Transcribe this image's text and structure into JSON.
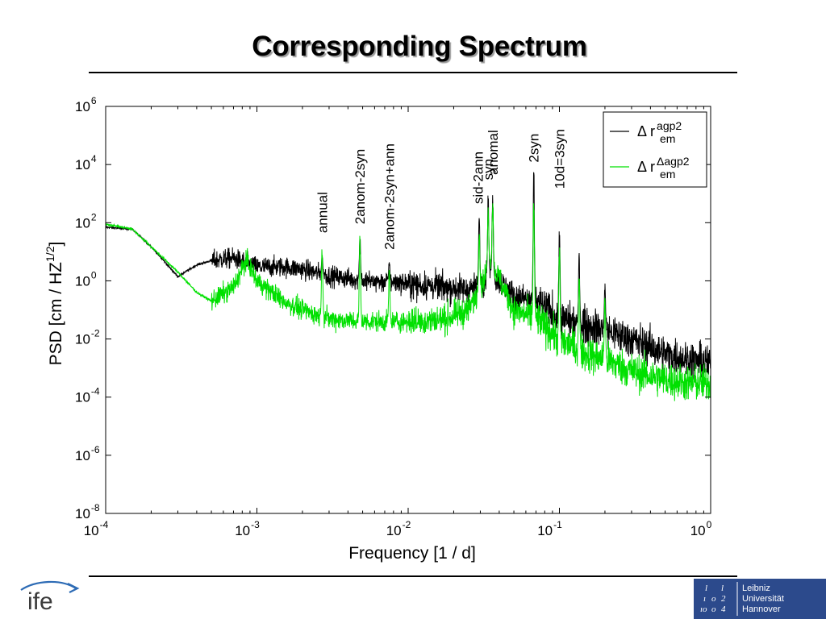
{
  "slide": {
    "title": "Corresponding Spectrum"
  },
  "logos": {
    "left_text": "ife",
    "right_lines": [
      "Leibniz",
      "Universität",
      "Hannover"
    ],
    "right_mark": [
      "l",
      "l",
      "ı",
      "o",
      "2",
      "ıo",
      "o",
      "4"
    ]
  },
  "chart_data": {
    "type": "line",
    "title": "",
    "xlabel": "Frequency [1 / d]",
    "ylabel": "PSD [cm / HZ^1/2]",
    "xscale": "log",
    "yscale": "log",
    "xlim": [
      0.0001,
      1
    ],
    "ylim": [
      1e-08,
      1000000.0
    ],
    "x_ticks": [
      0.0001,
      0.001,
      0.01,
      0.1,
      1
    ],
    "x_tick_labels": [
      {
        "base": "10",
        "exp": "-4"
      },
      {
        "base": "10",
        "exp": "-3"
      },
      {
        "base": "10",
        "exp": "-2"
      },
      {
        "base": "10",
        "exp": "-1"
      },
      {
        "base": "10",
        "exp": "0"
      }
    ],
    "y_ticks": [
      1e-08,
      1e-06,
      0.0001,
      0.01,
      1,
      100.0,
      10000.0,
      1000000.0
    ],
    "y_tick_labels": [
      {
        "base": "10",
        "exp": "-8"
      },
      {
        "base": "10",
        "exp": "-6"
      },
      {
        "base": "10",
        "exp": "-4"
      },
      {
        "base": "10",
        "exp": "-2"
      },
      {
        "base": "10",
        "exp": "0"
      },
      {
        "base": "10",
        "exp": "2"
      },
      {
        "base": "10",
        "exp": "4"
      },
      {
        "base": "10",
        "exp": "6"
      }
    ],
    "grid": false,
    "legend_position": "top-right",
    "legend": [
      {
        "prefix": "Δ r",
        "sup": "agp2",
        "sub": "em",
        "color": "#000000"
      },
      {
        "prefix": "Δ r",
        "sup": "Δagp2",
        "sub": "em",
        "color": "#00e000"
      }
    ],
    "annotations": [
      {
        "text": "annual",
        "x": 0.0027,
        "y": 30
      },
      {
        "text": "2anom-2syn",
        "x": 0.0048,
        "y": 60
      },
      {
        "text": "2anom-2syn+ann",
        "x": 0.0075,
        "y": 8
      },
      {
        "text": "sid-2ann",
        "x": 0.029,
        "y": 300
      },
      {
        "text": "syn",
        "x": 0.0338,
        "y": 2000
      },
      {
        "text": "anomal",
        "x": 0.0362,
        "y": 3000
      },
      {
        "text": "2syn",
        "x": 0.0677,
        "y": 8000
      },
      {
        "text": "10d=3syn",
        "x": 0.1,
        "y": 1000
      }
    ],
    "series": [
      {
        "name": "Δ r em agp2",
        "color": "#000000",
        "envelope": {
          "x": [
            0.0001,
            0.00015,
            0.0002,
            0.0003,
            0.0004,
            0.0005,
            0.0007,
            0.001,
            0.0015,
            0.002,
            0.003,
            0.005,
            0.008,
            0.012,
            0.018,
            0.025,
            0.03,
            0.035,
            0.05,
            0.07,
            0.1,
            0.15,
            0.2,
            0.3,
            0.5,
            0.7,
            1
          ],
          "y": [
            70,
            60,
            15,
            1.4,
            3.5,
            5,
            6,
            3,
            3,
            2.5,
            1.5,
            1,
            0.9,
            0.7,
            0.6,
            0.5,
            0.7,
            2,
            0.3,
            0.2,
            0.05,
            0.03,
            0.02,
            0.01,
            0.003,
            0.002,
            0.0015
          ]
        },
        "peaks": [
          {
            "x": 0.0027,
            "y": 8
          },
          {
            "x": 0.0048,
            "y": 50
          },
          {
            "x": 0.0075,
            "y": 6
          },
          {
            "x": 0.0295,
            "y": 300
          },
          {
            "x": 0.0338,
            "y": 2000
          },
          {
            "x": 0.0362,
            "y": 1500
          },
          {
            "x": 0.0677,
            "y": 10000
          },
          {
            "x": 0.1,
            "y": 100
          },
          {
            "x": 0.135,
            "y": 10
          },
          {
            "x": 0.2,
            "y": 1
          }
        ]
      },
      {
        "name": "Δ r em Δagp2",
        "color": "#00e000",
        "envelope": {
          "x": [
            0.0001,
            0.00015,
            0.0002,
            0.0003,
            0.0004,
            0.0005,
            0.0007,
            0.00085,
            0.001,
            0.0015,
            0.002,
            0.003,
            0.005,
            0.008,
            0.012,
            0.018,
            0.025,
            0.03,
            0.035,
            0.05,
            0.07,
            0.1,
            0.15,
            0.2,
            0.3,
            0.5,
            0.7,
            1
          ],
          "y": [
            90,
            60,
            15,
            2,
            0.4,
            0.2,
            0.6,
            5,
            1,
            0.2,
            0.1,
            0.05,
            0.04,
            0.04,
            0.04,
            0.05,
            0.1,
            0.5,
            5,
            0.1,
            0.05,
            0.01,
            0.003,
            0.002,
            0.0008,
            0.0004,
            0.0003,
            0.0003
          ]
        },
        "peaks": [
          {
            "x": 0.0027,
            "y": 30
          },
          {
            "x": 0.0048,
            "y": 60
          },
          {
            "x": 0.0075,
            "y": 3
          },
          {
            "x": 0.0295,
            "y": 100
          },
          {
            "x": 0.0338,
            "y": 500
          },
          {
            "x": 0.0362,
            "y": 700
          },
          {
            "x": 0.0677,
            "y": 3000
          },
          {
            "x": 0.1,
            "y": 30
          },
          {
            "x": 0.135,
            "y": 3
          },
          {
            "x": 0.2,
            "y": 0.5
          }
        ]
      }
    ]
  }
}
